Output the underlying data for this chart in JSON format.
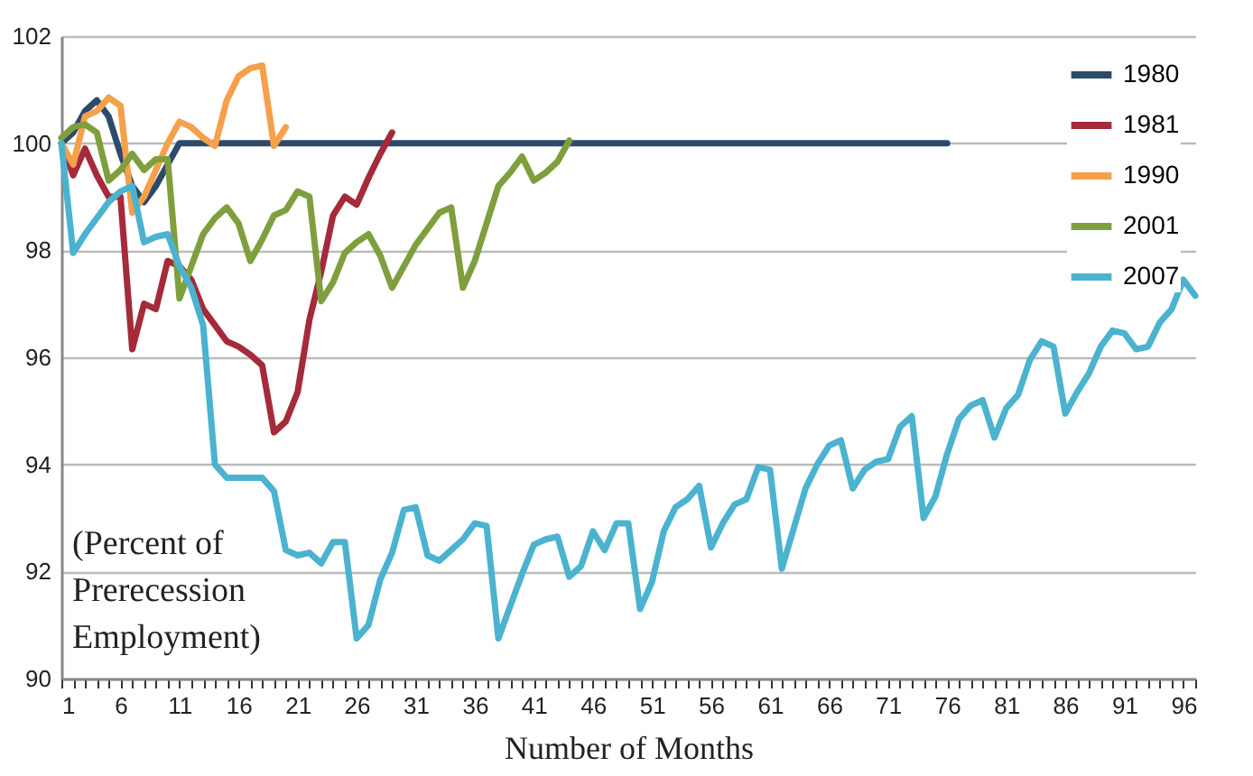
{
  "chart_data": {
    "type": "line",
    "xlabel": "Number of Months",
    "annotations": [
      "(Percent of\nPrerecession\nEmployment)"
    ],
    "x": [
      1,
      2,
      3,
      4,
      5,
      6,
      7,
      8,
      9,
      10,
      11,
      12,
      13,
      14,
      15,
      16,
      17,
      18,
      19,
      20,
      21,
      22,
      23,
      24,
      25,
      26,
      27,
      28,
      29,
      30,
      31,
      32,
      33,
      34,
      35,
      36,
      37,
      38,
      39,
      40,
      41,
      42,
      43,
      44,
      45,
      46,
      47,
      48,
      49,
      50,
      51,
      52,
      53,
      54,
      55,
      56,
      57,
      58,
      59,
      60,
      61,
      62,
      63,
      64,
      65,
      66,
      67,
      68,
      69,
      70,
      71,
      72,
      73,
      74,
      75,
      76,
      77,
      78,
      79,
      80,
      81,
      82,
      83,
      84,
      85,
      86,
      87,
      88,
      89,
      90,
      91,
      92,
      93,
      94,
      95,
      96,
      97
    ],
    "series": [
      {
        "name": "1980",
        "color": "#2e4a6b",
        "x": [
          1,
          2,
          3,
          4,
          5,
          6,
          7,
          8,
          9,
          10,
          11,
          12,
          13,
          14,
          15,
          16,
          17,
          18,
          19,
          20,
          21,
          22,
          23,
          24,
          25,
          26,
          27,
          28,
          29,
          30,
          31,
          32,
          33,
          34,
          35,
          36,
          37,
          38,
          39,
          40,
          41,
          42,
          43,
          44,
          45,
          46,
          47,
          48,
          49,
          50,
          51,
          52,
          53,
          54,
          55,
          56,
          57,
          58,
          59,
          60,
          61,
          62,
          63,
          64,
          65,
          66,
          67,
          68,
          69,
          70,
          71,
          72,
          73,
          74,
          75,
          76
        ],
        "values": [
          100,
          100.2,
          100.6,
          100.8,
          100.5,
          99.8,
          99.2,
          98.9,
          99.2,
          99.6,
          100,
          100,
          100,
          100,
          100,
          100,
          100,
          100,
          100,
          100,
          100,
          100,
          100,
          100,
          100,
          100,
          100,
          100,
          100,
          100,
          100,
          100,
          100,
          100,
          100,
          100,
          100,
          100,
          100,
          100,
          100,
          100,
          100,
          100,
          100,
          100,
          100,
          100,
          100,
          100,
          100,
          100,
          100,
          100,
          100,
          100,
          100,
          100,
          100,
          100,
          100,
          100,
          100,
          100,
          100,
          100,
          100,
          100,
          100,
          100,
          100,
          100,
          100,
          100,
          100,
          100
        ]
      },
      {
        "name": "1981",
        "color": "#a52a3a",
        "x": [
          1,
          2,
          3,
          4,
          5,
          6,
          7,
          8,
          9,
          10,
          11,
          12,
          13,
          14,
          15,
          16,
          17,
          18,
          19,
          20,
          21,
          22,
          23,
          24,
          25,
          26,
          27,
          28,
          29
        ],
        "values": [
          100,
          99.4,
          99.9,
          99.4,
          99.0,
          99.0,
          96.15,
          97.0,
          96.9,
          97.8,
          97.7,
          97.45,
          96.9,
          96.6,
          96.3,
          96.2,
          96.05,
          95.85,
          94.6,
          94.8,
          95.35,
          96.7,
          97.6,
          98.65,
          99.0,
          98.85,
          99.35,
          99.8,
          100.2
        ]
      },
      {
        "name": "1990",
        "color": "#f5a04a",
        "x": [
          1,
          2,
          3,
          4,
          5,
          6,
          7,
          8,
          9,
          10,
          11,
          12,
          13,
          14,
          15,
          16,
          17,
          18,
          19,
          20
        ],
        "values": [
          100,
          99.6,
          100.5,
          100.6,
          100.85,
          100.7,
          98.7,
          99.0,
          99.5,
          100.0,
          100.4,
          100.3,
          100.1,
          99.95,
          100.8,
          101.25,
          101.4,
          101.45,
          99.95,
          100.3
        ]
      },
      {
        "name": "2001",
        "color": "#7f9f3e",
        "x": [
          1,
          2,
          3,
          4,
          5,
          6,
          7,
          8,
          9,
          10,
          11,
          12,
          13,
          14,
          15,
          16,
          17,
          18,
          19,
          20,
          21,
          22,
          23,
          24,
          25,
          26,
          27,
          28,
          29,
          30,
          31,
          32,
          33,
          34,
          35,
          36,
          37,
          38,
          39,
          40,
          41,
          42,
          43,
          44
        ],
        "values": [
          100.1,
          100.3,
          100.35,
          100.2,
          99.3,
          99.5,
          99.8,
          99.5,
          99.7,
          99.7,
          97.1,
          97.7,
          98.3,
          98.6,
          98.8,
          98.5,
          97.8,
          98.2,
          98.65,
          98.75,
          99.1,
          99.0,
          97.05,
          97.4,
          97.95,
          98.15,
          98.3,
          97.9,
          97.3,
          97.7,
          98.1,
          98.4,
          98.7,
          98.8,
          97.3,
          97.8,
          98.5,
          99.2,
          99.45,
          99.75,
          99.3,
          99.45,
          99.65,
          100.05
        ]
      },
      {
        "name": "2007",
        "color": "#4bb3cf",
        "values": [
          100,
          97.95,
          98.3,
          98.6,
          98.9,
          99.1,
          99.2,
          98.15,
          98.25,
          98.3,
          97.7,
          97.3,
          96.6,
          94.0,
          93.75,
          93.75,
          93.75,
          93.75,
          93.5,
          92.4,
          92.3,
          92.35,
          92.15,
          92.55,
          92.55,
          90.75,
          91.0,
          91.85,
          92.35,
          93.15,
          93.2,
          92.3,
          92.2,
          92.4,
          92.6,
          92.9,
          92.85,
          90.75,
          91.35,
          91.95,
          92.5,
          92.6,
          92.65,
          91.9,
          92.1,
          92.75,
          92.4,
          92.9,
          92.9,
          91.3,
          91.8,
          92.75,
          93.2,
          93.35,
          93.6,
          92.45,
          92.9,
          93.25,
          93.35,
          93.95,
          93.9,
          92.05,
          92.8,
          93.55,
          94.0,
          94.35,
          94.45,
          93.55,
          93.9,
          94.05,
          94.1,
          94.7,
          94.9,
          93.0,
          93.4,
          94.2,
          94.85,
          95.1,
          95.2,
          94.5,
          95.05,
          95.3,
          95.95,
          96.3,
          96.2,
          94.95,
          95.35,
          95.7,
          96.2,
          96.5,
          96.45,
          96.15,
          96.2,
          96.65,
          96.9,
          97.45,
          97.15
        ]
      }
    ],
    "xlim": [
      1,
      97
    ],
    "xticks": [
      1,
      {
        "value": 2,
        "label": null
      },
      {
        "value": 3,
        "label": null
      },
      {
        "value": 4,
        "label": null
      },
      {
        "value": 5,
        "label": null
      },
      6,
      {
        "value": 7,
        "label": null
      },
      {
        "value": 8,
        "label": null
      },
      {
        "value": 9,
        "label": null
      },
      {
        "value": 10,
        "label": null
      },
      11,
      {
        "value": 12,
        "label": null
      },
      {
        "value": 13,
        "label": null
      },
      {
        "value": 14,
        "label": null
      },
      {
        "value": 15,
        "label": null
      },
      16,
      {
        "value": 17,
        "label": null
      },
      {
        "value": 18,
        "label": null
      },
      {
        "value": 19,
        "label": null
      },
      {
        "value": 20,
        "label": null
      },
      21,
      {
        "value": 22,
        "label": null
      },
      {
        "value": 23,
        "label": null
      },
      {
        "value": 24,
        "label": null
      },
      {
        "value": 25,
        "label": null
      },
      26,
      {
        "value": 27,
        "label": null
      },
      {
        "value": 28,
        "label": null
      },
      {
        "value": 29,
        "label": null
      },
      {
        "value": 30,
        "label": null
      },
      31,
      {
        "value": 32,
        "label": null
      },
      {
        "value": 33,
        "label": null
      },
      {
        "value": 34,
        "label": null
      },
      {
        "value": 35,
        "label": null
      },
      36,
      {
        "value": 37,
        "label": null
      },
      {
        "value": 38,
        "label": null
      },
      {
        "value": 39,
        "label": null
      },
      {
        "value": 40,
        "label": null
      },
      41,
      {
        "value": 42,
        "label": null
      },
      {
        "value": 43,
        "label": null
      },
      {
        "value": 44,
        "label": null
      },
      {
        "value": 45,
        "label": null
      },
      46,
      {
        "value": 47,
        "label": null
      },
      {
        "value": 48,
        "label": null
      },
      {
        "value": 49,
        "label": null
      },
      {
        "value": 50,
        "label": null
      },
      51,
      {
        "value": 52,
        "label": null
      },
      {
        "value": 53,
        "label": null
      },
      {
        "value": 54,
        "label": null
      },
      {
        "value": 55,
        "label": null
      },
      56,
      {
        "value": 57,
        "label": null
      },
      {
        "value": 58,
        "label": null
      },
      {
        "value": 59,
        "label": null
      },
      {
        "value": 60,
        "label": null
      },
      61,
      {
        "value": 62,
        "label": null
      },
      {
        "value": 63,
        "label": null
      },
      {
        "value": 64,
        "label": null
      },
      {
        "value": 65,
        "label": null
      },
      66,
      {
        "value": 67,
        "label": null
      },
      {
        "value": 68,
        "label": null
      },
      {
        "value": 69,
        "label": null
      },
      {
        "value": 70,
        "label": null
      },
      71,
      {
        "value": 72,
        "label": null
      },
      {
        "value": 73,
        "label": null
      },
      {
        "value": 74,
        "label": null
      },
      {
        "value": 75,
        "label": null
      },
      76,
      {
        "value": 77,
        "label": null
      },
      {
        "value": 78,
        "label": null
      },
      {
        "value": 79,
        "label": null
      },
      {
        "value": 80,
        "label": null
      },
      81,
      {
        "value": 82,
        "label": null
      },
      {
        "value": 83,
        "label": null
      },
      {
        "value": 84,
        "label": null
      },
      {
        "value": 85,
        "label": null
      },
      86,
      {
        "value": 87,
        "label": null
      },
      {
        "value": 88,
        "label": null
      },
      {
        "value": 89,
        "label": null
      },
      {
        "value": 90,
        "label": null
      },
      91,
      {
        "value": 92,
        "label": null
      },
      {
        "value": 93,
        "label": null
      },
      {
        "value": 94,
        "label": null
      },
      {
        "value": 95,
        "label": null
      },
      96,
      {
        "value": 97,
        "label": null
      }
    ],
    "ylim": [
      90,
      102
    ],
    "yticks": [
      90,
      92,
      94,
      96,
      98,
      100,
      102
    ],
    "grid": "y",
    "legend": "top right",
    "line_style": "solid",
    "marker": "none"
  }
}
